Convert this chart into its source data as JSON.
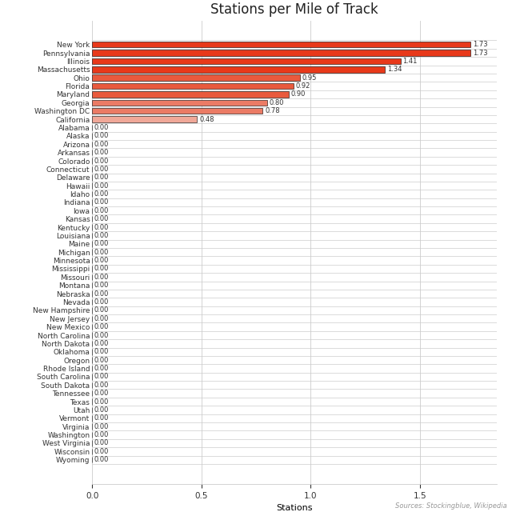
{
  "title": "Stations per Mile of Track",
  "xlabel": "Stations",
  "source_text": "Sources: Stockingblue, Wikipedia",
  "states": [
    "New York",
    "Pennsylvania",
    "Illinois",
    "Massachusetts",
    "Ohio",
    "Florida",
    "Maryland",
    "Georgia",
    "Washington DC",
    "California",
    "Alabama",
    "Alaska",
    "Arizona",
    "Arkansas",
    "Colorado",
    "Connecticut",
    "Delaware",
    "Hawaii",
    "Idaho",
    "Indiana",
    "Iowa",
    "Kansas",
    "Kentucky",
    "Louisiana",
    "Maine",
    "Michigan",
    "Minnesota",
    "Mississippi",
    "Missouri",
    "Montana",
    "Nebraska",
    "Nevada",
    "New Hampshire",
    "New Jersey",
    "New Mexico",
    "North Carolina",
    "North Dakota",
    "Oklahoma",
    "Oregon",
    "Rhode Island",
    "South Carolina",
    "South Dakota",
    "Tennessee",
    "Texas",
    "Utah",
    "Vermont",
    "Virginia",
    "Washington",
    "West Virginia",
    "Wisconsin",
    "Wyoming"
  ],
  "values": [
    1.73,
    1.73,
    1.41,
    1.34,
    0.95,
    0.92,
    0.9,
    0.8,
    0.78,
    0.48,
    0.0,
    0.0,
    0.0,
    0.0,
    0.0,
    0.0,
    0.0,
    0.0,
    0.0,
    0.0,
    0.0,
    0.0,
    0.0,
    0.0,
    0.0,
    0.0,
    0.0,
    0.0,
    0.0,
    0.0,
    0.0,
    0.0,
    0.0,
    0.0,
    0.0,
    0.0,
    0.0,
    0.0,
    0.0,
    0.0,
    0.0,
    0.0,
    0.0,
    0.0,
    0.0,
    0.0,
    0.0,
    0.0,
    0.0,
    0.0,
    0.0
  ],
  "bar_colors": [
    "#e8391a",
    "#e8391a",
    "#e8391a",
    "#e8391a",
    "#e95a3d",
    "#e95a3d",
    "#e95a3d",
    "#eb7b65",
    "#eb7b65",
    "#f0a898",
    "#f5d5ce",
    "#f5d5ce",
    "#f5d5ce",
    "#f5d5ce",
    "#f5d5ce",
    "#f5d5ce",
    "#f5d5ce",
    "#f5d5ce",
    "#f5d5ce",
    "#f5d5ce",
    "#f5d5ce",
    "#f5d5ce",
    "#f5d5ce",
    "#f5d5ce",
    "#f5d5ce",
    "#f5d5ce",
    "#f5d5ce",
    "#f5d5ce",
    "#f5d5ce",
    "#f5d5ce",
    "#f5d5ce",
    "#f5d5ce",
    "#f5d5ce",
    "#f5d5ce",
    "#f5d5ce",
    "#f5d5ce",
    "#f5d5ce",
    "#f5d5ce",
    "#f5d5ce",
    "#f5d5ce",
    "#f5d5ce",
    "#f5d5ce",
    "#f5d5ce",
    "#f5d5ce",
    "#f5d5ce",
    "#f5d5ce",
    "#f5d5ce",
    "#f5d5ce",
    "#f5d5ce",
    "#f5d5ce",
    "#f5d5ce"
  ],
  "xlim": [
    0.0,
    1.85
  ],
  "grid_color": "#cccccc",
  "background_color": "#ffffff",
  "label_fontsize": 6.5,
  "title_fontsize": 12,
  "value_fontsize": 6.0,
  "source_fontsize": 6.0,
  "bar_height": 0.72,
  "bar_edgecolor": "#000000",
  "bar_edgewidth": 0.4
}
